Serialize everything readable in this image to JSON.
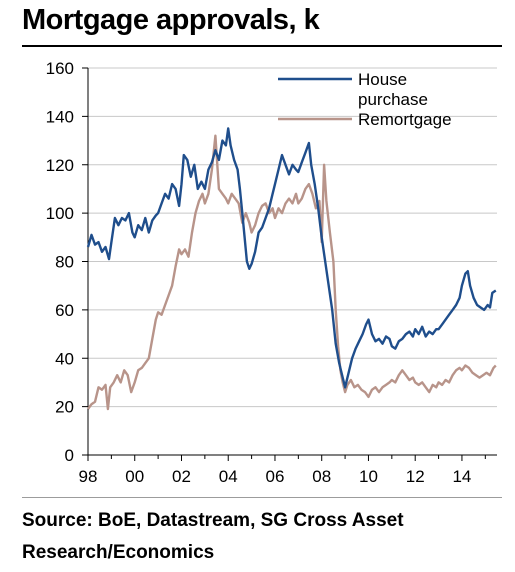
{
  "chart_data": {
    "type": "line",
    "title": "Mortgage approvals, k",
    "xlabel": "",
    "ylabel": "",
    "xlim": [
      1998,
      2015.5
    ],
    "ylim": [
      0,
      160
    ],
    "x_ticks": [
      "98",
      "00",
      "02",
      "04",
      "06",
      "08",
      "10",
      "12",
      "14"
    ],
    "y_ticks": [
      "0",
      "20",
      "40",
      "60",
      "80",
      "100",
      "120",
      "140",
      "160"
    ],
    "grid": "horizontal",
    "legend_position": "top-right",
    "series": [
      {
        "name": "House purchase",
        "color": "#1f4e8c",
        "points": [
          [
            1998.0,
            86
          ],
          [
            1998.15,
            91
          ],
          [
            1998.3,
            87
          ],
          [
            1998.45,
            88
          ],
          [
            1998.6,
            84
          ],
          [
            1998.75,
            86
          ],
          [
            1998.9,
            81
          ],
          [
            1999.0,
            88
          ],
          [
            1999.15,
            98
          ],
          [
            1999.3,
            95
          ],
          [
            1999.45,
            98
          ],
          [
            1999.6,
            97
          ],
          [
            1999.75,
            100
          ],
          [
            1999.9,
            92
          ],
          [
            2000.0,
            90
          ],
          [
            2000.15,
            95
          ],
          [
            2000.3,
            93
          ],
          [
            2000.45,
            98
          ],
          [
            2000.6,
            92
          ],
          [
            2000.75,
            97
          ],
          [
            2000.9,
            99
          ],
          [
            2001.0,
            100
          ],
          [
            2001.15,
            104
          ],
          [
            2001.3,
            108
          ],
          [
            2001.45,
            106
          ],
          [
            2001.6,
            112
          ],
          [
            2001.75,
            110
          ],
          [
            2001.9,
            103
          ],
          [
            2002.0,
            112
          ],
          [
            2002.1,
            124
          ],
          [
            2002.25,
            122
          ],
          [
            2002.4,
            115
          ],
          [
            2002.55,
            120
          ],
          [
            2002.7,
            110
          ],
          [
            2002.85,
            113
          ],
          [
            2003.0,
            110
          ],
          [
            2003.15,
            118
          ],
          [
            2003.3,
            121
          ],
          [
            2003.45,
            126
          ],
          [
            2003.6,
            122
          ],
          [
            2003.75,
            130
          ],
          [
            2003.9,
            128
          ],
          [
            2004.0,
            135
          ],
          [
            2004.1,
            128
          ],
          [
            2004.25,
            122
          ],
          [
            2004.4,
            118
          ],
          [
            2004.5,
            110
          ],
          [
            2004.6,
            100
          ],
          [
            2004.7,
            90
          ],
          [
            2004.8,
            80
          ],
          [
            2004.9,
            77
          ],
          [
            2005.0,
            79
          ],
          [
            2005.15,
            84
          ],
          [
            2005.3,
            92
          ],
          [
            2005.45,
            94
          ],
          [
            2005.6,
            98
          ],
          [
            2005.75,
            102
          ],
          [
            2005.9,
            108
          ],
          [
            2006.0,
            112
          ],
          [
            2006.15,
            118
          ],
          [
            2006.3,
            124
          ],
          [
            2006.45,
            120
          ],
          [
            2006.6,
            116
          ],
          [
            2006.75,
            120
          ],
          [
            2006.9,
            118
          ],
          [
            2007.0,
            117
          ],
          [
            2007.15,
            121
          ],
          [
            2007.3,
            125
          ],
          [
            2007.45,
            129
          ],
          [
            2007.55,
            120
          ],
          [
            2007.7,
            112
          ],
          [
            2007.85,
            102
          ],
          [
            2008.0,
            90
          ],
          [
            2008.15,
            80
          ],
          [
            2008.3,
            70
          ],
          [
            2008.45,
            60
          ],
          [
            2008.6,
            46
          ],
          [
            2008.75,
            38
          ],
          [
            2008.9,
            32
          ],
          [
            2009.0,
            28
          ],
          [
            2009.15,
            34
          ],
          [
            2009.3,
            40
          ],
          [
            2009.45,
            44
          ],
          [
            2009.6,
            47
          ],
          [
            2009.75,
            50
          ],
          [
            2009.9,
            54
          ],
          [
            2010.0,
            56
          ],
          [
            2010.15,
            50
          ],
          [
            2010.3,
            47
          ],
          [
            2010.45,
            48
          ],
          [
            2010.6,
            46
          ],
          [
            2010.75,
            49
          ],
          [
            2010.9,
            48
          ],
          [
            2011.0,
            45
          ],
          [
            2011.15,
            44
          ],
          [
            2011.3,
            47
          ],
          [
            2011.45,
            48
          ],
          [
            2011.6,
            50
          ],
          [
            2011.75,
            51
          ],
          [
            2011.9,
            49
          ],
          [
            2012.0,
            52
          ],
          [
            2012.15,
            50
          ],
          [
            2012.3,
            53
          ],
          [
            2012.45,
            49
          ],
          [
            2012.6,
            51
          ],
          [
            2012.75,
            50
          ],
          [
            2012.9,
            52
          ],
          [
            2013.0,
            52
          ],
          [
            2013.15,
            54
          ],
          [
            2013.3,
            56
          ],
          [
            2013.45,
            58
          ],
          [
            2013.6,
            60
          ],
          [
            2013.75,
            62
          ],
          [
            2013.9,
            65
          ],
          [
            2014.0,
            70
          ],
          [
            2014.15,
            75
          ],
          [
            2014.25,
            76
          ],
          [
            2014.35,
            70
          ],
          [
            2014.5,
            65
          ],
          [
            2014.65,
            62
          ],
          [
            2014.8,
            61
          ],
          [
            2014.95,
            60
          ],
          [
            2015.1,
            62
          ],
          [
            2015.2,
            61
          ],
          [
            2015.3,
            67
          ],
          [
            2015.45,
            68
          ]
        ]
      },
      {
        "name": "Remortgage",
        "color": "#b8948a",
        "points": [
          [
            1998.0,
            19
          ],
          [
            1998.15,
            21
          ],
          [
            1998.3,
            22
          ],
          [
            1998.45,
            28
          ],
          [
            1998.6,
            27
          ],
          [
            1998.75,
            29
          ],
          [
            1998.85,
            19
          ],
          [
            1998.95,
            28
          ],
          [
            1999.1,
            30
          ],
          [
            1999.25,
            33
          ],
          [
            1999.4,
            30
          ],
          [
            1999.55,
            35
          ],
          [
            1999.7,
            33
          ],
          [
            1999.85,
            26
          ],
          [
            2000.0,
            30
          ],
          [
            2000.15,
            35
          ],
          [
            2000.3,
            36
          ],
          [
            2000.45,
            38
          ],
          [
            2000.6,
            40
          ],
          [
            2000.75,
            48
          ],
          [
            2000.9,
            56
          ],
          [
            2001.0,
            59
          ],
          [
            2001.15,
            58
          ],
          [
            2001.3,
            62
          ],
          [
            2001.45,
            66
          ],
          [
            2001.6,
            70
          ],
          [
            2001.75,
            78
          ],
          [
            2001.9,
            85
          ],
          [
            2002.0,
            83
          ],
          [
            2002.15,
            85
          ],
          [
            2002.3,
            82
          ],
          [
            2002.45,
            92
          ],
          [
            2002.6,
            100
          ],
          [
            2002.75,
            105
          ],
          [
            2002.9,
            108
          ],
          [
            2003.0,
            104
          ],
          [
            2003.15,
            108
          ],
          [
            2003.3,
            118
          ],
          [
            2003.45,
            132
          ],
          [
            2003.6,
            110
          ],
          [
            2003.75,
            108
          ],
          [
            2003.9,
            106
          ],
          [
            2004.0,
            104
          ],
          [
            2004.15,
            108
          ],
          [
            2004.3,
            106
          ],
          [
            2004.45,
            104
          ],
          [
            2004.6,
            96
          ],
          [
            2004.75,
            100
          ],
          [
            2004.9,
            96
          ],
          [
            2005.0,
            92
          ],
          [
            2005.15,
            95
          ],
          [
            2005.3,
            100
          ],
          [
            2005.45,
            103
          ],
          [
            2005.6,
            104
          ],
          [
            2005.75,
            100
          ],
          [
            2005.9,
            102
          ],
          [
            2006.0,
            98
          ],
          [
            2006.15,
            102
          ],
          [
            2006.3,
            100
          ],
          [
            2006.45,
            104
          ],
          [
            2006.6,
            106
          ],
          [
            2006.75,
            104
          ],
          [
            2006.9,
            108
          ],
          [
            2007.0,
            104
          ],
          [
            2007.15,
            106
          ],
          [
            2007.3,
            110
          ],
          [
            2007.45,
            112
          ],
          [
            2007.6,
            108
          ],
          [
            2007.75,
            102
          ],
          [
            2007.9,
            105
          ],
          [
            2008.0,
            88
          ],
          [
            2008.1,
            120
          ],
          [
            2008.2,
            105
          ],
          [
            2008.35,
            92
          ],
          [
            2008.5,
            80
          ],
          [
            2008.6,
            60
          ],
          [
            2008.7,
            45
          ],
          [
            2008.8,
            35
          ],
          [
            2008.9,
            30
          ],
          [
            2009.0,
            26
          ],
          [
            2009.1,
            29
          ],
          [
            2009.25,
            31
          ],
          [
            2009.4,
            28
          ],
          [
            2009.55,
            29
          ],
          [
            2009.7,
            27
          ],
          [
            2009.85,
            26
          ],
          [
            2010.0,
            24
          ],
          [
            2010.15,
            27
          ],
          [
            2010.3,
            28
          ],
          [
            2010.45,
            26
          ],
          [
            2010.6,
            28
          ],
          [
            2010.75,
            29
          ],
          [
            2010.9,
            30
          ],
          [
            2011.0,
            31
          ],
          [
            2011.15,
            30
          ],
          [
            2011.3,
            33
          ],
          [
            2011.45,
            35
          ],
          [
            2011.6,
            33
          ],
          [
            2011.75,
            31
          ],
          [
            2011.9,
            32
          ],
          [
            2012.0,
            30
          ],
          [
            2012.15,
            29
          ],
          [
            2012.3,
            30
          ],
          [
            2012.45,
            28
          ],
          [
            2012.6,
            26
          ],
          [
            2012.75,
            29
          ],
          [
            2012.9,
            28
          ],
          [
            2013.0,
            30
          ],
          [
            2013.15,
            29
          ],
          [
            2013.3,
            31
          ],
          [
            2013.45,
            30
          ],
          [
            2013.6,
            33
          ],
          [
            2013.75,
            35
          ],
          [
            2013.9,
            36
          ],
          [
            2014.0,
            35
          ],
          [
            2014.15,
            37
          ],
          [
            2014.3,
            36
          ],
          [
            2014.45,
            34
          ],
          [
            2014.6,
            33
          ],
          [
            2014.75,
            32
          ],
          [
            2014.9,
            33
          ],
          [
            2015.05,
            34
          ],
          [
            2015.2,
            33
          ],
          [
            2015.35,
            36
          ],
          [
            2015.45,
            37
          ]
        ]
      }
    ]
  },
  "source_note": "Source: BoE, Datastream, SG Cross Asset Research/Economics"
}
